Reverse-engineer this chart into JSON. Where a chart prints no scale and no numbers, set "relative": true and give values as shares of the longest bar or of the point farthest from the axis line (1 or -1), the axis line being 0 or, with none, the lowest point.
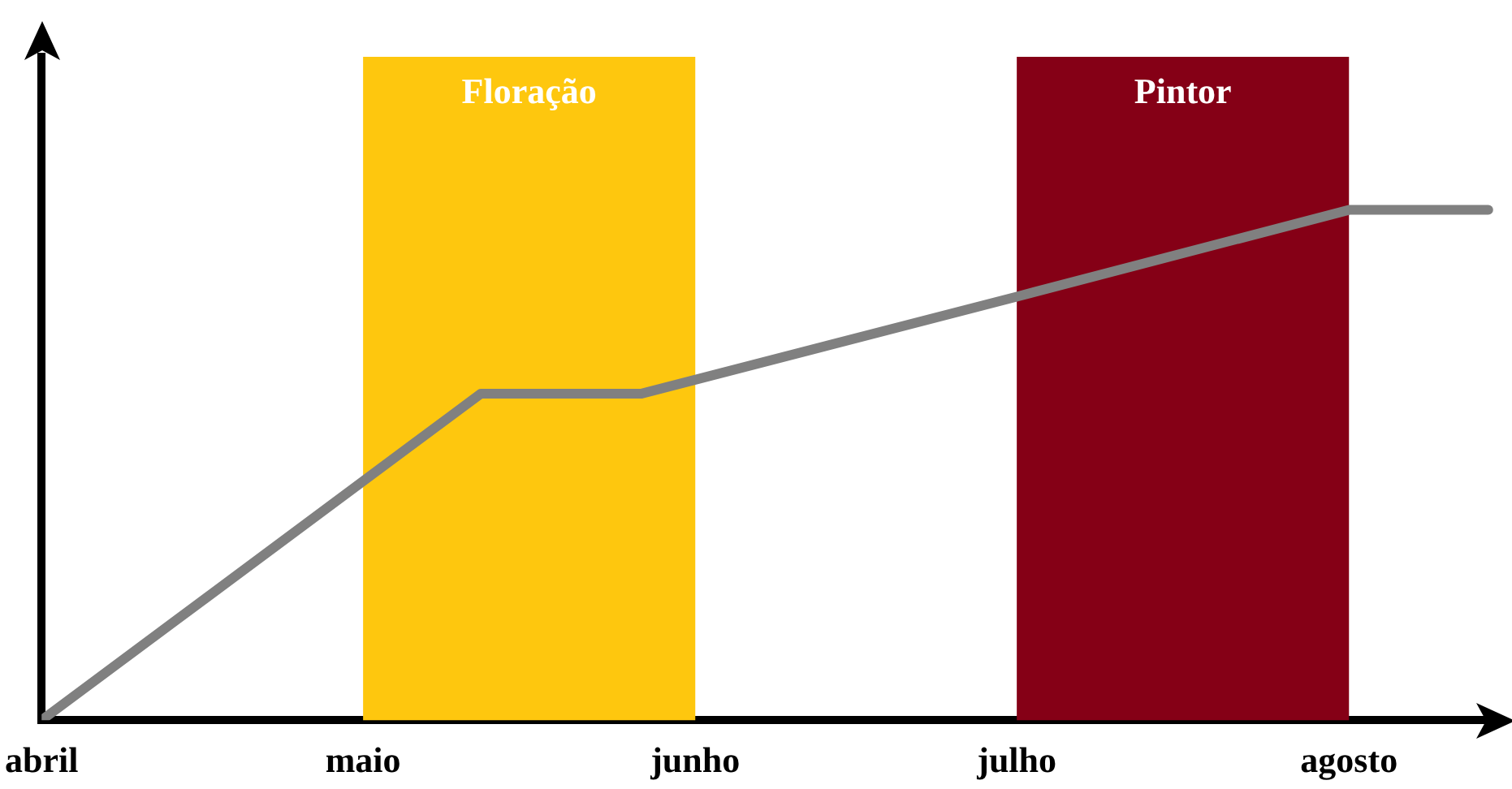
{
  "chart_data": {
    "type": "line",
    "relative": true,
    "x": [
      "--04-01",
      "--05-12",
      "--05-27",
      "--07-01",
      "--08-01",
      "--08-14"
    ],
    "series": [
      {
        "color": "#808080",
        "values": [
          0,
          0.64,
          0.64,
          0.83,
          1,
          1
        ]
      }
    ],
    "xlim": [
      "--04-01",
      "--08-15"
    ],
    "xticks": [
      {
        "value": "--04-01",
        "label": "abril"
      },
      {
        "value": "--05-01",
        "label": "maio"
      },
      {
        "value": "--06-01",
        "label": "junho"
      },
      {
        "value": "--07-01",
        "label": "julho"
      },
      {
        "value": "--08-01",
        "label": "agosto"
      }
    ],
    "bands": [
      {
        "axis": "x",
        "from": "--05-01",
        "to": "--06-01",
        "label": "Floração",
        "color": "#fec70e"
      },
      {
        "axis": "x",
        "from": "--07-01",
        "to": "--08-01",
        "label": "Pintor",
        "color": "#850016"
      }
    ],
    "marker": "none",
    "line_style": "solid",
    "legend": false
  }
}
